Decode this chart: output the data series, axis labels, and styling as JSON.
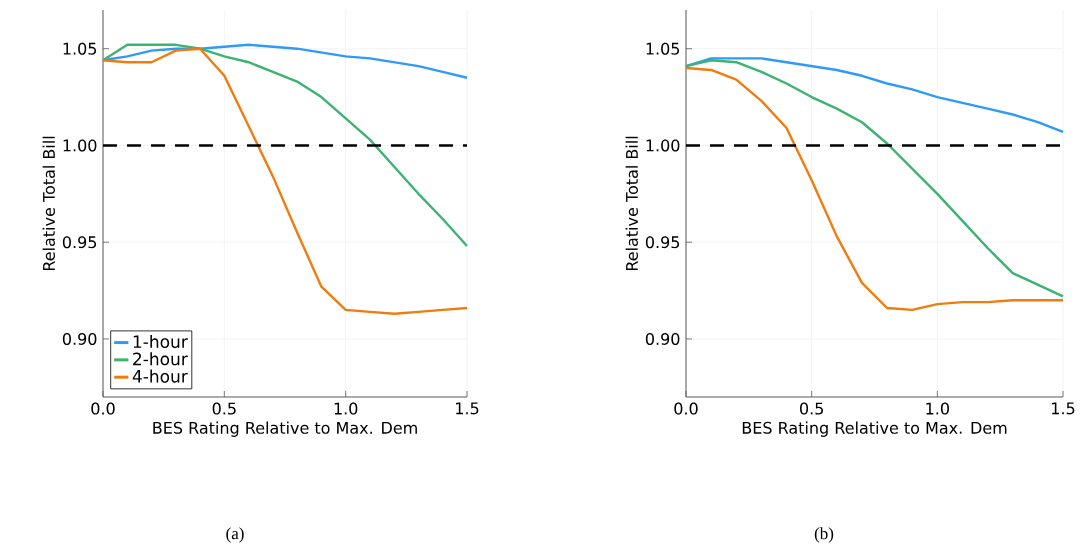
{
  "chart_data": [
    {
      "type": "line",
      "xlabel": "BES Rating Relative to Max. Dem",
      "ylabel": "Relative Total Bill",
      "annotations": [
        "(a)"
      ],
      "x": [
        0,
        0.1,
        0.2,
        0.3,
        0.4,
        0.5,
        0.6,
        0.7,
        0.8,
        0.9,
        1.0,
        1.1,
        1.2,
        1.3,
        1.4,
        1.5
      ],
      "series": [
        {
          "name": "1-hour",
          "color": "#2f9bf7",
          "values": [
            1.044,
            1.046,
            1.049,
            1.05,
            1.05,
            1.051,
            1.052,
            1.051,
            1.05,
            1.048,
            1.046,
            1.045,
            1.043,
            1.041,
            1.038,
            1.035
          ]
        },
        {
          "name": "2-hour",
          "color": "#3cb371",
          "values": [
            1.044,
            1.052,
            1.052,
            1.052,
            1.05,
            1.046,
            1.043,
            1.038,
            1.033,
            1.025,
            1.014,
            1.003,
            0.989,
            0.975,
            0.962,
            0.948
          ]
        },
        {
          "name": "4-hour",
          "color": "#f07c0f",
          "values": [
            1.044,
            1.043,
            1.043,
            1.049,
            1.05,
            1.036,
            1.01,
            0.984,
            0.955,
            0.927,
            0.915,
            0.914,
            0.913,
            0.914,
            0.915,
            0.916
          ]
        }
      ],
      "ref_lines": [
        {
          "axis": "y",
          "value": 1.0,
          "color": "#000000",
          "line_style": "dashed"
        }
      ],
      "xlim": [
        0,
        1.5
      ],
      "ylim": [
        0.87,
        1.07
      ],
      "xticks": [
        {
          "value": 0,
          "label": "0.0"
        },
        {
          "value": 0.5,
          "label": "0.5"
        },
        {
          "value": 1.0,
          "label": "1.0"
        },
        {
          "value": 1.5,
          "label": "1.5"
        }
      ],
      "yticks": [
        {
          "value": 0.9,
          "label": "0.90"
        },
        {
          "value": 0.95,
          "label": "0.95"
        },
        {
          "value": 1.0,
          "label": "1.00"
        },
        {
          "value": 1.05,
          "label": "1.05"
        }
      ],
      "grid": true,
      "legend": "bottom left",
      "line_style": "solid",
      "marker": "none"
    },
    {
      "type": "line",
      "xlabel": "BES Rating Relative to Max. Dem",
      "ylabel": "Relative Total Bill",
      "annotations": [
        "(b)"
      ],
      "x": [
        0,
        0.1,
        0.2,
        0.3,
        0.4,
        0.5,
        0.6,
        0.7,
        0.8,
        0.9,
        1.0,
        1.1,
        1.2,
        1.3,
        1.4,
        1.5
      ],
      "series": [
        {
          "color": "#2f9bf7",
          "values": [
            1.041,
            1.045,
            1.045,
            1.045,
            1.043,
            1.041,
            1.039,
            1.036,
            1.032,
            1.029,
            1.025,
            1.022,
            1.019,
            1.016,
            1.012,
            1.007
          ]
        },
        {
          "color": "#3cb371",
          "values": [
            1.041,
            1.044,
            1.043,
            1.038,
            1.032,
            1.025,
            1.019,
            1.012,
            1.001,
            0.988,
            0.975,
            0.961,
            0.947,
            0.934,
            0.928,
            0.922
          ]
        },
        {
          "color": "#f07c0f",
          "values": [
            1.04,
            1.039,
            1.034,
            1.023,
            1.009,
            0.982,
            0.953,
            0.929,
            0.916,
            0.915,
            0.918,
            0.919,
            0.919,
            0.92,
            0.92,
            0.92
          ]
        }
      ],
      "ref_lines": [
        {
          "axis": "y",
          "value": 1.0,
          "color": "#000000",
          "line_style": "dashed"
        }
      ],
      "xlim": [
        0,
        1.5
      ],
      "ylim": [
        0.87,
        1.07
      ],
      "xticks": [
        {
          "value": 0,
          "label": "0.0"
        },
        {
          "value": 0.5,
          "label": "0.5"
        },
        {
          "value": 1.0,
          "label": "1.0"
        },
        {
          "value": 1.5,
          "label": "1.5"
        }
      ],
      "yticks": [
        {
          "value": 0.9,
          "label": "0.90"
        },
        {
          "value": 0.95,
          "label": "0.95"
        },
        {
          "value": 1.0,
          "label": "1.00"
        },
        {
          "value": 1.05,
          "label": "1.05"
        }
      ],
      "grid": true,
      "line_style": "solid",
      "marker": "none"
    }
  ]
}
